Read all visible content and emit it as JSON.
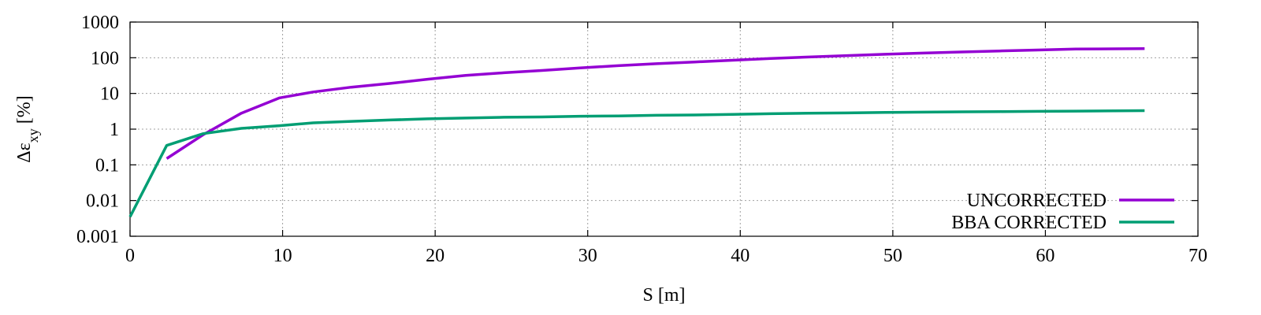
{
  "chart_data": {
    "type": "line",
    "title": "",
    "xlabel": "S [m]",
    "ylabel": {
      "prefix": "Δε",
      "subscript": "xy",
      "suffix": " [%]"
    },
    "xlim": [
      0,
      70
    ],
    "ylim": [
      0.001,
      1000
    ],
    "yscale": "log",
    "grid": true,
    "legend_position": "bottom-right",
    "x_ticks": [
      {
        "value": 0,
        "label": "0"
      },
      {
        "value": 10,
        "label": "10"
      },
      {
        "value": 20,
        "label": "20"
      },
      {
        "value": 30,
        "label": "30"
      },
      {
        "value": 40,
        "label": "40"
      },
      {
        "value": 50,
        "label": "50"
      },
      {
        "value": 60,
        "label": "60"
      },
      {
        "value": 70,
        "label": "70"
      }
    ],
    "y_ticks": [
      {
        "value": 0.001,
        "label": "0.001"
      },
      {
        "value": 0.01,
        "label": "0.01"
      },
      {
        "value": 0.1,
        "label": "0.1"
      },
      {
        "value": 1,
        "label": "1"
      },
      {
        "value": 10,
        "label": "10"
      },
      {
        "value": 100,
        "label": "100"
      },
      {
        "value": 1000,
        "label": "1000"
      }
    ],
    "series": [
      {
        "name": "UNCORRECTED",
        "color": "#9400d3",
        "x": [
          2.4,
          4.8,
          7.3,
          9.8,
          12,
          14.5,
          17,
          19.5,
          22,
          24.5,
          27,
          29.5,
          32,
          34.5,
          37,
          39.5,
          42,
          44.5,
          47,
          49.5,
          52,
          54.5,
          57,
          59.5,
          62,
          64.5,
          66.5
        ],
        "y": [
          0.15,
          0.7,
          2.8,
          7.5,
          11,
          15,
          19,
          25,
          32,
          38,
          44,
          52,
          60,
          68,
          76,
          85,
          95,
          105,
          115,
          125,
          135,
          145,
          155,
          165,
          175,
          178,
          180
        ]
      },
      {
        "name": "BBA CORRECTED",
        "color": "#009e73",
        "x": [
          0,
          2.4,
          4.8,
          7.3,
          9.8,
          12,
          14.5,
          17,
          19.5,
          22,
          24.5,
          27,
          29.5,
          32,
          34.5,
          37,
          39.5,
          42,
          44.5,
          47,
          49.5,
          52,
          54.5,
          57,
          59.5,
          62,
          64.5,
          66.5
        ],
        "y": [
          0.0035,
          0.35,
          0.75,
          1.05,
          1.25,
          1.5,
          1.65,
          1.8,
          1.95,
          2.05,
          2.15,
          2.2,
          2.3,
          2.35,
          2.45,
          2.5,
          2.6,
          2.7,
          2.8,
          2.85,
          2.95,
          3.0,
          3.05,
          3.1,
          3.15,
          3.2,
          3.25,
          3.3
        ]
      }
    ]
  }
}
